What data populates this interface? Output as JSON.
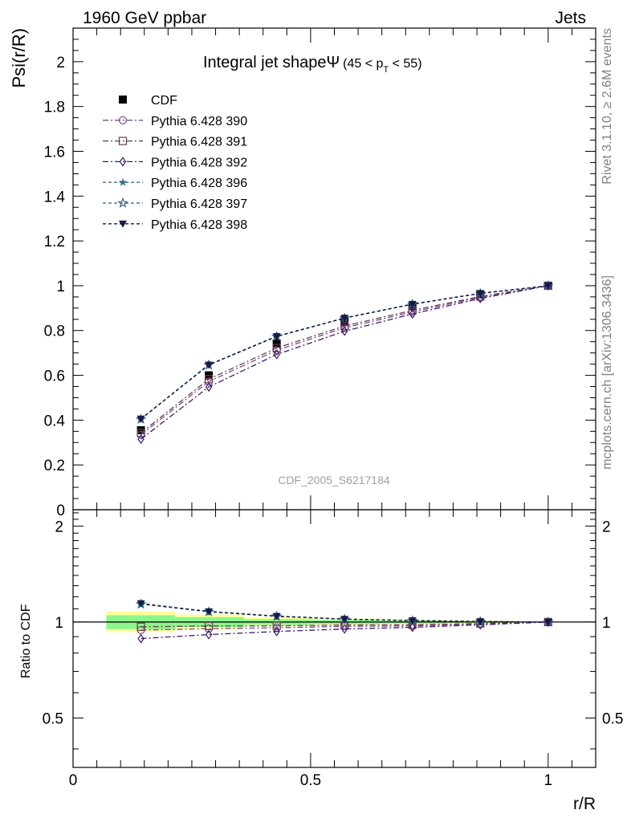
{
  "header": {
    "left": "1960 GeV ppbar",
    "right": "Jets"
  },
  "side": {
    "rivet": "Rivet 3.1.10, ≥ 2.6M events",
    "mcplots": "mcplots.cern.ch [arXiv:1306.3436]"
  },
  "title": {
    "main": "Integral jet shape",
    "symbol": "Ψ",
    "range_open": "(45 < p",
    "range_sub": "T",
    "range_close": " < 55)"
  },
  "watermark": "CDF_2005_S6217184",
  "chart_data": {
    "type": "line",
    "xlabel": "r/R",
    "ylabel": "Psi(r/R)",
    "ratio_ylabel": "Ratio to CDF",
    "xlim": [
      0,
      1.1
    ],
    "ylim": [
      0,
      2.15
    ],
    "ratio_ylim": [
      0.35,
      2.25
    ],
    "x": [
      0.1429,
      0.2857,
      0.4286,
      0.5714,
      0.7143,
      0.8571,
      1.0
    ],
    "xticks": [
      "0",
      "0.5",
      "1"
    ],
    "yticks": [
      "0",
      "0.2",
      "0.4",
      "0.6",
      "0.8",
      "1",
      "1.2",
      "1.4",
      "1.6",
      "1.8",
      "2"
    ],
    "ratio_yticks": [
      "0.5",
      "1",
      "2"
    ],
    "data": {
      "name": "CDF",
      "values": [
        0.355,
        0.6,
        0.742,
        0.838,
        0.908,
        0.962,
        1.0
      ],
      "color": "#000000"
    },
    "series": [
      {
        "name": "Pythia 6.428 390",
        "values": [
          0.335,
          0.572,
          0.712,
          0.812,
          0.883,
          0.948,
          1.0
        ],
        "marker": "circle-open",
        "dash": "dashdot",
        "color": "#7a4a8a"
      },
      {
        "name": "Pythia 6.428 391",
        "values": [
          0.343,
          0.583,
          0.722,
          0.82,
          0.89,
          0.952,
          1.0
        ],
        "marker": "square-open",
        "dash": "dashdot",
        "color": "#6b3e50"
      },
      {
        "name": "Pythia 6.428 392",
        "values": [
          0.315,
          0.548,
          0.693,
          0.797,
          0.874,
          0.943,
          1.0
        ],
        "marker": "diamond-open",
        "dash": "dashdot",
        "color": "#3d1a6e"
      },
      {
        "name": "Pythia 6.428 396",
        "values": [
          0.405,
          0.648,
          0.775,
          0.856,
          0.918,
          0.966,
          1.0
        ],
        "marker": "star",
        "dash": "dash",
        "color": "#3f6f88"
      },
      {
        "name": "Pythia 6.428 397",
        "values": [
          0.404,
          0.646,
          0.773,
          0.855,
          0.917,
          0.965,
          1.0
        ],
        "marker": "star-open",
        "dash": "dash",
        "color": "#2d5a78"
      },
      {
        "name": "Pythia 6.428 398",
        "values": [
          0.406,
          0.647,
          0.774,
          0.856,
          0.918,
          0.966,
          1.0
        ],
        "marker": "triangle-down",
        "dash": "dash",
        "color": "#141a4a"
      }
    ],
    "ratio_band_inner": [
      {
        "x0": 0.07,
        "x1": 0.215,
        "lo": 0.95,
        "hi": 1.05
      },
      {
        "x0": 0.215,
        "x1": 0.36,
        "lo": 0.965,
        "hi": 1.035
      },
      {
        "x0": 0.36,
        "x1": 0.5,
        "lo": 0.98,
        "hi": 1.02
      },
      {
        "x0": 0.5,
        "x1": 0.645,
        "lo": 0.985,
        "hi": 1.015
      },
      {
        "x0": 0.645,
        "x1": 0.785,
        "lo": 0.99,
        "hi": 1.01
      },
      {
        "x0": 0.785,
        "x1": 0.93,
        "lo": 0.995,
        "hi": 1.005
      }
    ],
    "ratio_band_outer": [
      {
        "x0": 0.07,
        "x1": 0.215,
        "lo": 0.93,
        "hi": 1.08
      },
      {
        "x0": 0.215,
        "x1": 0.36,
        "lo": 0.95,
        "hi": 1.055
      },
      {
        "x0": 0.36,
        "x1": 0.5,
        "lo": 0.97,
        "hi": 1.035
      },
      {
        "x0": 0.5,
        "x1": 0.645,
        "lo": 0.98,
        "hi": 1.025
      },
      {
        "x0": 0.645,
        "x1": 0.785,
        "lo": 0.985,
        "hi": 1.015
      },
      {
        "x0": 0.785,
        "x1": 0.93,
        "lo": 0.99,
        "hi": 1.01
      }
    ],
    "legend": "top-left"
  }
}
